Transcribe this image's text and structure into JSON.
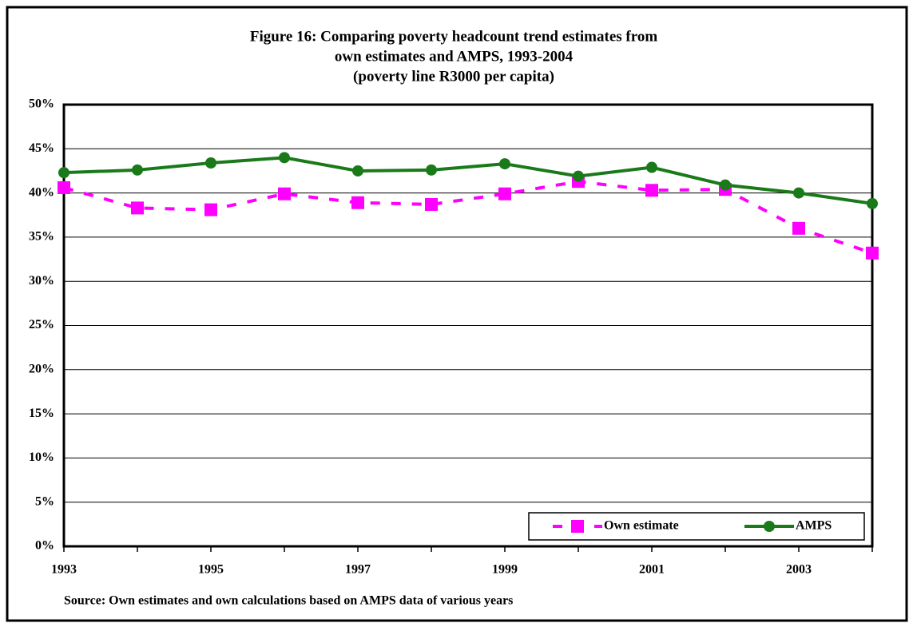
{
  "chart_data": {
    "type": "line",
    "title": "Figure 16: Comparing poverty headcount trend estimates from",
    "subtitle": [
      "own estimates and AMPS, 1993-2004",
      "(poverty line R3000 per capita)"
    ],
    "source": "Source: Own estimates and own calculations based on AMPS data of various years",
    "categories": [
      "1993",
      null,
      "1995",
      null,
      "1997",
      null,
      "1999",
      null,
      "2001",
      null,
      "2003",
      null
    ],
    "series": [
      {
        "name": "Own estimate",
        "color": "#ff00ff",
        "marker": "square",
        "line_style": "dashed",
        "values": [
          40.6,
          38.3,
          38.1,
          39.9,
          38.9,
          38.7,
          39.9,
          41.3,
          40.3,
          40.4,
          36.0,
          33.2
        ]
      },
      {
        "name": "AMPS",
        "color": "#1a7a1a",
        "marker": "circle",
        "line_style": "solid",
        "values": [
          42.3,
          42.6,
          43.4,
          44.0,
          42.5,
          42.6,
          43.3,
          41.9,
          42.9,
          40.9,
          40.0,
          38.8
        ]
      }
    ],
    "ylim": [
      0,
      50
    ],
    "yticks": [
      {
        "value": 0,
        "label": "0%"
      },
      {
        "value": 5,
        "label": "5%"
      },
      {
        "value": 10,
        "label": "10%"
      },
      {
        "value": 15,
        "label": "15%"
      },
      {
        "value": 20,
        "label": "20%"
      },
      {
        "value": 25,
        "label": "25%"
      },
      {
        "value": 30,
        "label": "30%"
      },
      {
        "value": 35,
        "label": "35%"
      },
      {
        "value": 40,
        "label": "40%"
      },
      {
        "value": 45,
        "label": "45%"
      },
      {
        "value": 50,
        "label": "50%"
      }
    ],
    "grid": true,
    "legend": "bottom right"
  }
}
